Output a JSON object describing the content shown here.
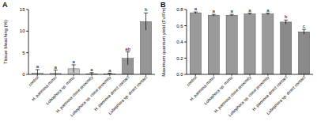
{
  "chart_data": [
    {
      "type": "bar",
      "title": "A",
      "y_label": "Tissue bleaching (%)",
      "categories": [
        "control",
        "H. pannosa mimic",
        "Lobophora sp. mimic",
        "H. pannosa close proximity",
        "Lobophora sp. close proximity",
        "H. pannosa direct contact",
        "Lobophora sp. direct contact"
      ],
      "values": [
        0.3,
        0.2,
        1.3,
        0.1,
        0.05,
        3.7,
        12.2
      ],
      "errors": [
        0.8,
        0.8,
        0.9,
        0.3,
        0.2,
        1.5,
        2.0
      ],
      "letters": [
        "a",
        "a",
        "a",
        "a",
        "a",
        "ab",
        "b"
      ],
      "colors": [
        "#e3e3e3",
        "#c9c9c9",
        "#c9c9c9",
        "#b3b3b3",
        "#b3b3b3",
        "#969696",
        "#969696"
      ],
      "ylim": [
        0,
        15
      ],
      "yticks": [
        0,
        5,
        10,
        15
      ]
    },
    {
      "type": "bar",
      "title": "B",
      "y_label": "Maximum quantum yield (Fv/Fm)",
      "categories": [
        "control",
        "H. pannosa mimic",
        "Lobophora sp. mimic",
        "H. pannosa close proximity",
        "Lobophora sp. close proximity",
        "H. pannosa direct contact",
        "Lobophora sp. direct contact"
      ],
      "values": [
        0.76,
        0.73,
        0.73,
        0.745,
        0.745,
        0.645,
        0.525
      ],
      "errors": [
        0.01,
        0.01,
        0.01,
        0.01,
        0.01,
        0.025,
        0.03
      ],
      "letters": [
        "a",
        "a",
        "a",
        "a",
        "a",
        "b",
        "c"
      ],
      "colors": [
        "#9a9a9a",
        "#9a9a9a",
        "#9a9a9a",
        "#9a9a9a",
        "#9a9a9a",
        "#8a8a8a",
        "#8a8a8a"
      ],
      "ylim": [
        0,
        0.8
      ],
      "yticks": [
        {
          "value": 0,
          "label": "0.0"
        },
        0.2,
        0.4,
        0.6,
        0.8
      ]
    }
  ]
}
